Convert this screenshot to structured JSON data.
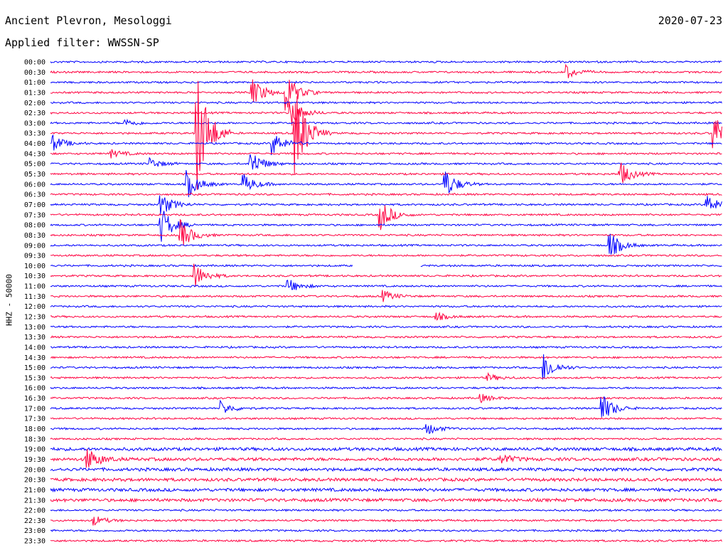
{
  "header": {
    "station": "Ancient Plevron, Mesologgi",
    "filter": "Applied filter: WWSSN-SP",
    "date": "2020-07-23"
  },
  "colors": {
    "blue": "#0000ff",
    "red": "#ff0040"
  },
  "chart_data": {
    "type": "line",
    "title": "Ancient Plevron, Mesologgi",
    "subtitle": "Applied filter: WWSSN-SP",
    "date": "2020-07-23",
    "ylabel": "HHZ - 50000",
    "xlabel": "",
    "grid": false,
    "legend": "none",
    "traces": [
      {
        "time": "00:00",
        "color": "#0000ff"
      },
      {
        "time": "00:30",
        "color": "#ff0040"
      },
      {
        "time": "01:00",
        "color": "#0000ff"
      },
      {
        "time": "01:30",
        "color": "#ff0040"
      },
      {
        "time": "02:00",
        "color": "#0000ff"
      },
      {
        "time": "02:30",
        "color": "#ff0040"
      },
      {
        "time": "03:00",
        "color": "#0000ff"
      },
      {
        "time": "03:30",
        "color": "#ff0040"
      },
      {
        "time": "04:00",
        "color": "#0000ff"
      },
      {
        "time": "04:30",
        "color": "#ff0040"
      },
      {
        "time": "05:00",
        "color": "#0000ff"
      },
      {
        "time": "05:30",
        "color": "#ff0040"
      },
      {
        "time": "06:00",
        "color": "#0000ff"
      },
      {
        "time": "06:30",
        "color": "#ff0040"
      },
      {
        "time": "07:00",
        "color": "#0000ff"
      },
      {
        "time": "07:30",
        "color": "#ff0040"
      },
      {
        "time": "08:00",
        "color": "#0000ff"
      },
      {
        "time": "08:30",
        "color": "#ff0040"
      },
      {
        "time": "09:00",
        "color": "#0000ff"
      },
      {
        "time": "09:30",
        "color": "#ff0040"
      },
      {
        "time": "10:00",
        "color": "#0000ff"
      },
      {
        "time": "10:30",
        "color": "#ff0040"
      },
      {
        "time": "11:00",
        "color": "#0000ff"
      },
      {
        "time": "11:30",
        "color": "#ff0040"
      },
      {
        "time": "12:00",
        "color": "#0000ff"
      },
      {
        "time": "12:30",
        "color": "#ff0040"
      },
      {
        "time": "13:00",
        "color": "#0000ff"
      },
      {
        "time": "13:30",
        "color": "#ff0040"
      },
      {
        "time": "14:00",
        "color": "#0000ff"
      },
      {
        "time": "14:30",
        "color": "#ff0040"
      },
      {
        "time": "15:00",
        "color": "#0000ff"
      },
      {
        "time": "15:30",
        "color": "#ff0040"
      },
      {
        "time": "16:00",
        "color": "#0000ff"
      },
      {
        "time": "16:30",
        "color": "#ff0040"
      },
      {
        "time": "17:00",
        "color": "#0000ff"
      },
      {
        "time": "17:30",
        "color": "#ff0040"
      },
      {
        "time": "18:00",
        "color": "#0000ff"
      },
      {
        "time": "18:30",
        "color": "#ff0040"
      },
      {
        "time": "19:00",
        "color": "#0000ff"
      },
      {
        "time": "19:30",
        "color": "#ff0040"
      },
      {
        "time": "20:00",
        "color": "#0000ff"
      },
      {
        "time": "20:30",
        "color": "#ff0040"
      },
      {
        "time": "21:00",
        "color": "#0000ff"
      },
      {
        "time": "21:30",
        "color": "#ff0040"
      },
      {
        "time": "22:00",
        "color": "#0000ff"
      },
      {
        "time": "22:30",
        "color": "#ff0040"
      },
      {
        "time": "23:00",
        "color": "#0000ff"
      },
      {
        "time": "23:30",
        "color": "#ff0040"
      }
    ],
    "events": [
      {
        "time": "00:30",
        "minute": 23,
        "amp": 0.7
      },
      {
        "time": "01:30",
        "minute": 9,
        "amp": 1.5
      },
      {
        "time": "01:30",
        "minute": 10.5,
        "amp": 2.0
      },
      {
        "time": "02:30",
        "minute": 10.7,
        "amp": 1.5
      },
      {
        "time": "03:00",
        "minute": 3.3,
        "amp": 0.4
      },
      {
        "time": "03:30",
        "minute": 29.6,
        "amp": 2.0
      },
      {
        "time": "03:30",
        "minute": 6.5,
        "amp": 7.0
      },
      {
        "time": "03:30",
        "minute": 10.9,
        "amp": 5.0
      },
      {
        "time": "04:00",
        "minute": 0.1,
        "amp": 0.8
      },
      {
        "time": "04:00",
        "minute": 9.9,
        "amp": 1.2
      },
      {
        "time": "04:30",
        "minute": 2.7,
        "amp": 0.4
      },
      {
        "time": "05:00",
        "minute": 8.9,
        "amp": 1.5
      },
      {
        "time": "05:00",
        "minute": 4.4,
        "amp": 0.6
      },
      {
        "time": "05:30",
        "minute": 25.4,
        "amp": 1.3
      },
      {
        "time": "06:00",
        "minute": 6.1,
        "amp": 1.4
      },
      {
        "time": "06:00",
        "minute": 17.6,
        "amp": 1.5
      },
      {
        "time": "06:00",
        "minute": 8.6,
        "amp": 1.0
      },
      {
        "time": "07:00",
        "minute": 4.9,
        "amp": 1.2
      },
      {
        "time": "07:00",
        "minute": 29.3,
        "amp": 1.0
      },
      {
        "time": "07:30",
        "minute": 14.7,
        "amp": 1.6
      },
      {
        "time": "08:00",
        "minute": 4.9,
        "amp": 2.0
      },
      {
        "time": "08:30",
        "minute": 5.8,
        "amp": 1.5
      },
      {
        "time": "09:00",
        "minute": 24.9,
        "amp": 1.5
      },
      {
        "time": "10:30",
        "minute": 6.4,
        "amp": 1.3
      },
      {
        "time": "11:00",
        "minute": 10.6,
        "amp": 0.7
      },
      {
        "time": "11:30",
        "minute": 14.8,
        "amp": 0.6
      },
      {
        "time": "12:30",
        "minute": 17.2,
        "amp": 0.4
      },
      {
        "time": "15:00",
        "minute": 22.0,
        "amp": 1.5
      },
      {
        "time": "15:30",
        "minute": 19.5,
        "amp": 0.4
      },
      {
        "time": "16:30",
        "minute": 19.2,
        "amp": 0.4
      },
      {
        "time": "17:00",
        "minute": 7.6,
        "amp": 0.7
      },
      {
        "time": "17:00",
        "minute": 24.6,
        "amp": 1.5
      },
      {
        "time": "18:00",
        "minute": 16.8,
        "amp": 0.6
      },
      {
        "time": "19:30",
        "minute": 1.6,
        "amp": 1.2
      },
      {
        "time": "19:30",
        "minute": 20.1,
        "amp": 0.5
      },
      {
        "time": "22:30",
        "minute": 1.9,
        "amp": 0.5
      }
    ],
    "gaps": [
      {
        "time": "10:00",
        "from_minute": 13.5,
        "to_minute": 16.5
      }
    ]
  }
}
